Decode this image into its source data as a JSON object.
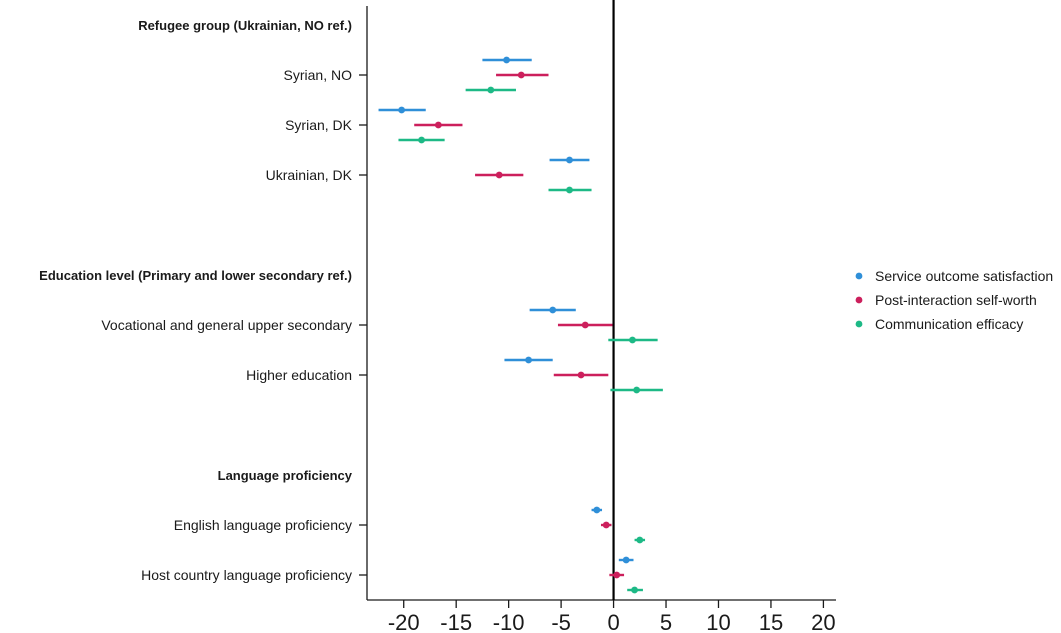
{
  "chart_data": {
    "type": "scatter",
    "title": "",
    "xlabel": "",
    "ylabel": "",
    "xlim": [
      -23.5,
      21.2
    ],
    "xticks": [
      -20,
      -15,
      -10,
      -5,
      0,
      5,
      10,
      15,
      20
    ],
    "xtick_labels": [
      "-20",
      "-15",
      "-10",
      "-5",
      "0",
      "5",
      "10",
      "15",
      "20"
    ],
    "reference_line": 0,
    "grid": false,
    "legend_position": "right",
    "series": [
      {
        "name": "Service outcome satisfaction",
        "color": "#2f8fd8"
      },
      {
        "name": "Post-interaction self-worth",
        "color": "#cc1f5c"
      },
      {
        "name": "Communication efficacy",
        "color": "#1db986"
      }
    ],
    "groups": [
      {
        "header": "Refugee group (Ukrainian, NO ref.)",
        "rows": [
          {
            "label": "Syrian, NO",
            "estimates": [
              {
                "est": -10.2,
                "lo": -12.5,
                "hi": -7.8
              },
              {
                "est": -8.8,
                "lo": -11.2,
                "hi": -6.2
              },
              {
                "est": -11.7,
                "lo": -14.1,
                "hi": -9.3
              }
            ]
          },
          {
            "label": "Syrian, DK",
            "estimates": [
              {
                "est": -20.2,
                "lo": -22.4,
                "hi": -17.9
              },
              {
                "est": -16.7,
                "lo": -19.0,
                "hi": -14.4
              },
              {
                "est": -18.3,
                "lo": -20.5,
                "hi": -16.1
              }
            ]
          },
          {
            "label": "Ukrainian, DK",
            "estimates": [
              {
                "est": -4.2,
                "lo": -6.1,
                "hi": -2.3
              },
              {
                "est": -10.9,
                "lo": -13.2,
                "hi": -8.6
              },
              {
                "est": -4.2,
                "lo": -6.2,
                "hi": -2.1
              }
            ]
          }
        ]
      },
      {
        "header": "Education level (Primary and lower secondary ref.)",
        "rows": [
          {
            "label": "Vocational and general upper secondary",
            "estimates": [
              {
                "est": -5.8,
                "lo": -8.0,
                "hi": -3.6
              },
              {
                "est": -2.7,
                "lo": -5.3,
                "hi": -0.1
              },
              {
                "est": 1.8,
                "lo": -0.5,
                "hi": 4.2
              }
            ]
          },
          {
            "label": "Higher education",
            "estimates": [
              {
                "est": -8.1,
                "lo": -10.4,
                "hi": -5.8
              },
              {
                "est": -3.1,
                "lo": -5.7,
                "hi": -0.5
              },
              {
                "est": 2.2,
                "lo": -0.3,
                "hi": 4.7
              }
            ]
          }
        ]
      },
      {
        "header": "Language proficiency",
        "rows": [
          {
            "label": "English language proficiency",
            "estimates": [
              {
                "est": -1.6,
                "lo": -2.1,
                "hi": -1.1
              },
              {
                "est": -0.7,
                "lo": -1.2,
                "hi": -0.2
              },
              {
                "est": 2.5,
                "lo": 2.0,
                "hi": 3.0
              }
            ]
          },
          {
            "label": "Host country language proficiency",
            "estimates": [
              {
                "est": 1.2,
                "lo": 0.5,
                "hi": 1.9
              },
              {
                "est": 0.3,
                "lo": -0.4,
                "hi": 1.0
              },
              {
                "est": 2.0,
                "lo": 1.3,
                "hi": 2.8
              }
            ]
          }
        ]
      }
    ]
  }
}
